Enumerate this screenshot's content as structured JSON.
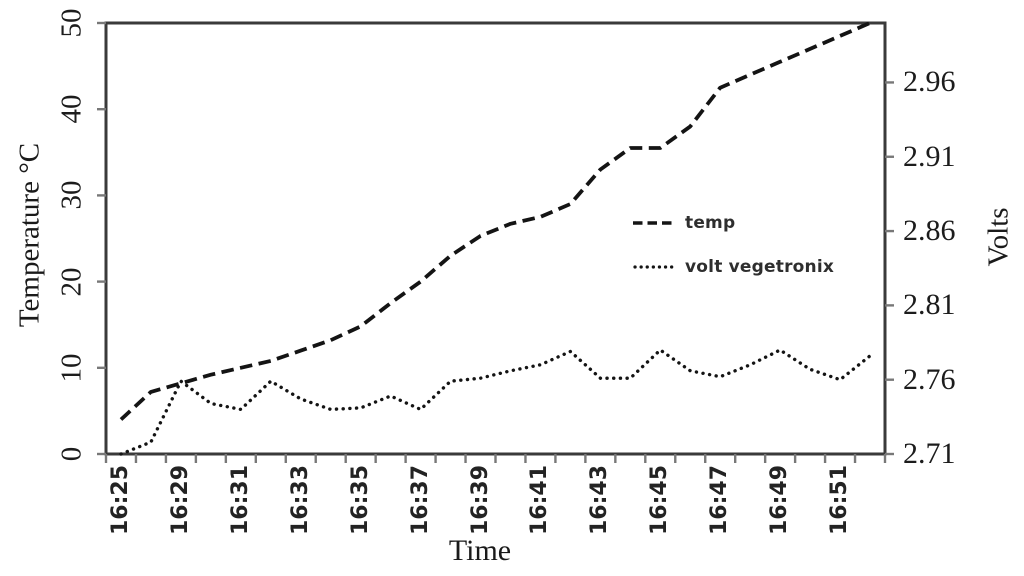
{
  "figure": {
    "background": "#ffffff",
    "axis_color": "#3a3a3a",
    "tick_color": "#787878",
    "line_color": "#141414"
  },
  "chart_data": {
    "type": "line",
    "title": "",
    "xlabel": "Time",
    "ylabel_left": "Temperature °C",
    "ylabel_right": "Volts",
    "x_tick_labels": [
      "16:25",
      "16:29",
      "16:31",
      "16:33",
      "16:35",
      "16:37",
      "16:39",
      "16:41",
      "16:43",
      "16:45",
      "16:47",
      "16:49",
      "16:51"
    ],
    "samples_per_label_interval": 2,
    "left_axis": {
      "ticks": [
        "0",
        "10",
        "20",
        "30",
        "40",
        "50"
      ],
      "range": [
        0,
        50
      ]
    },
    "right_axis": {
      "ticks": [
        "2.71",
        "2.76",
        "2.81",
        "2.86",
        "2.91",
        "2.96"
      ],
      "range": [
        2.71,
        3.0
      ]
    },
    "series": [
      {
        "name": "temp",
        "axis": "left",
        "line_style": "dashed",
        "values": [
          4,
          7.2,
          8.2,
          9.2,
          10,
          10.8,
          12,
          13.2,
          14.8,
          17.5,
          20,
          23,
          25.3,
          26.7,
          27.5,
          29,
          33,
          35.5,
          35.5,
          38,
          42.5,
          44,
          45.5,
          47,
          48.5,
          50
        ]
      },
      {
        "name": "volt vegetronix",
        "axis": "right",
        "line_style": "dotted",
        "values": [
          2.71,
          2.718,
          2.759,
          2.744,
          2.74,
          2.759,
          2.747,
          2.74,
          2.741,
          2.749,
          2.74,
          2.759,
          2.761,
          2.766,
          2.77,
          2.779,
          2.761,
          2.761,
          2.78,
          2.766,
          2.762,
          2.77,
          2.78,
          2.767,
          2.76,
          2.776
        ]
      }
    ],
    "legend": {
      "position": "middle-right",
      "items": [
        "temp",
        "volt vegetronix"
      ]
    }
  }
}
